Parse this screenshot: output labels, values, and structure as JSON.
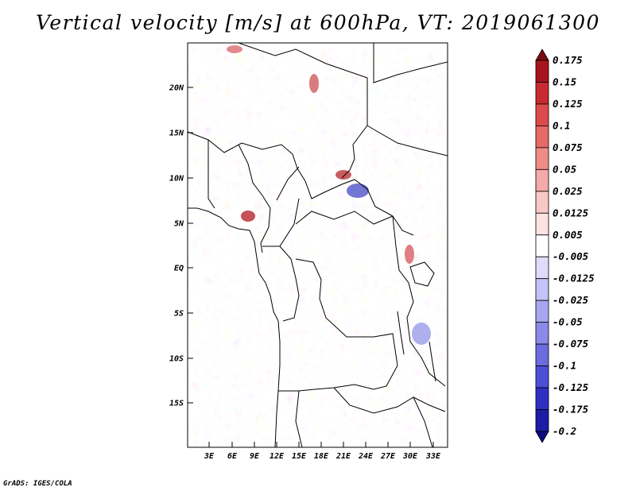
{
  "title": "Vertical velocity [m/s] at 600hPa, VT: 2019061300",
  "map": {
    "variable": "Vertical velocity",
    "units": "m/s",
    "level": "600hPa",
    "valid_time": "2019061300",
    "lat_labels": [
      "20N",
      "15N",
      "10N",
      "5N",
      "EQ",
      "5S",
      "10S",
      "15S"
    ],
    "lon_labels": [
      "3E",
      "6E",
      "9E",
      "12E",
      "15E",
      "18E",
      "21E",
      "24E",
      "27E",
      "30E",
      "33E"
    ]
  },
  "colorbar": {
    "labels": [
      "0.175",
      "0.15",
      "0.125",
      "0.1",
      "0.075",
      "0.05",
      "0.025",
      "0.0125",
      "0.005",
      "-0.005",
      "-0.0125",
      "-0.025",
      "-0.05",
      "-0.075",
      "-0.1",
      "-0.125",
      "-0.175",
      "-0.2"
    ],
    "colors": [
      "#7a0a10",
      "#a8141c",
      "#c82a30",
      "#dc4a4c",
      "#e66a68",
      "#ee8c88",
      "#f4aaa8",
      "#f8c8c6",
      "#fce2e0",
      "#ffffff",
      "#dedcfa",
      "#c4c2f6",
      "#a8a6f0",
      "#8c8ae8",
      "#6c6ce0",
      "#4c4ed6",
      "#2e30c4",
      "#1c1ca8",
      "#0c0c80"
    ]
  },
  "credit": "GrADS: IGES/COLA"
}
